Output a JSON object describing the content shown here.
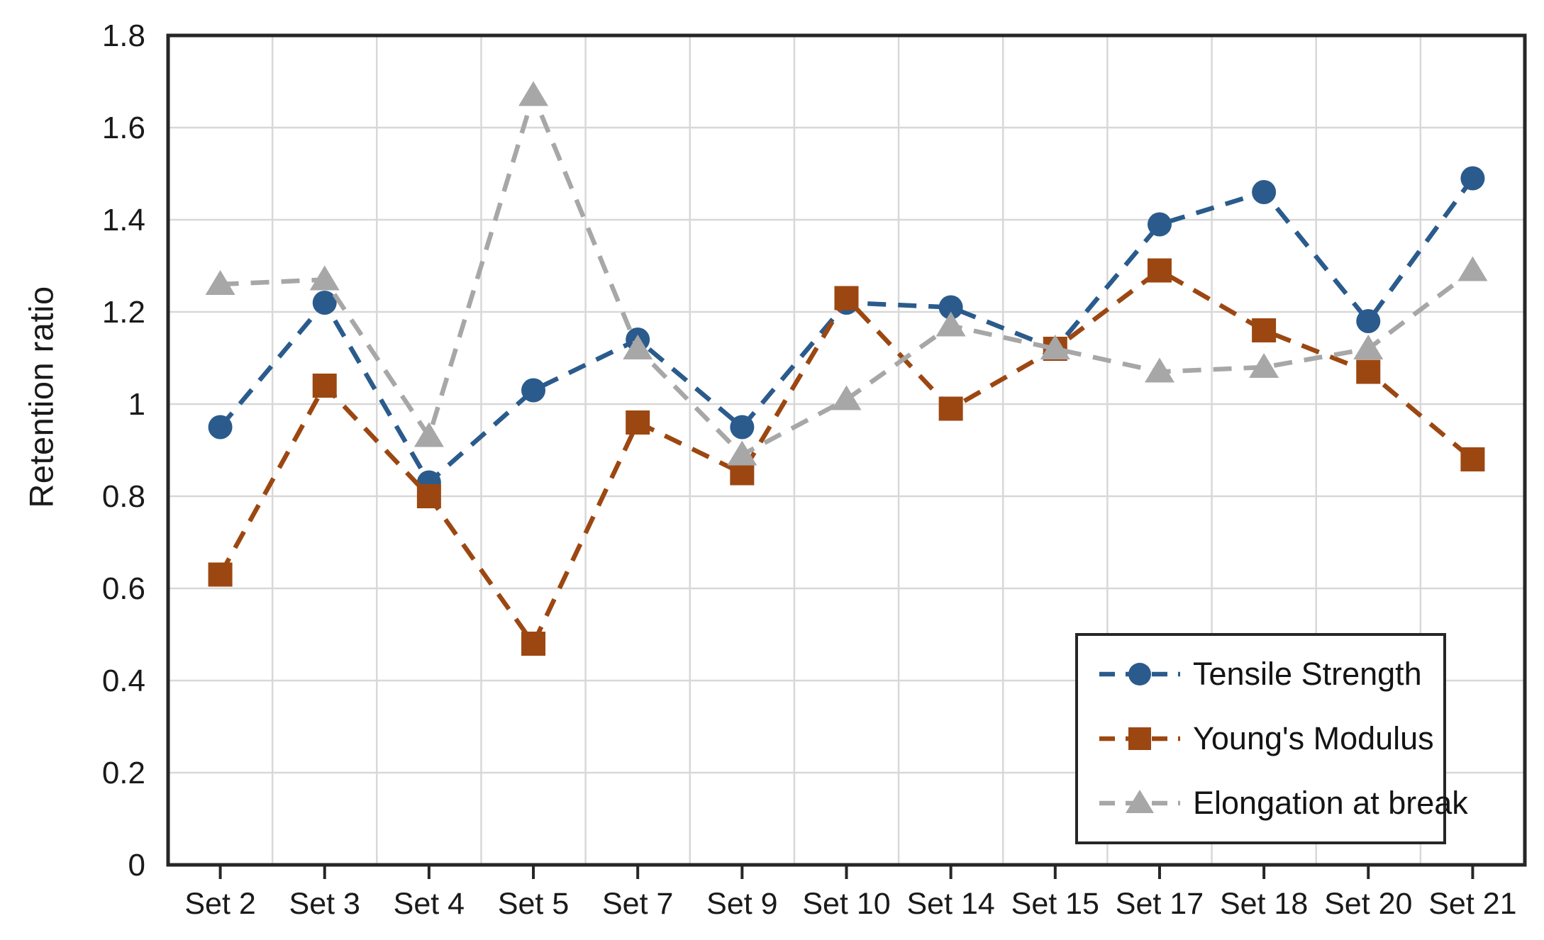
{
  "chart_data": {
    "type": "line",
    "title": "",
    "xlabel": "",
    "ylabel": "Retention ratio",
    "ylim": [
      0,
      1.8
    ],
    "ytick_step": 0.2,
    "ytick_labels": [
      "0",
      "0.2",
      "0.4",
      "0.6",
      "0.8",
      "1",
      "1.2",
      "1.4",
      "1.6",
      "1.8"
    ],
    "grid": true,
    "line_style": "dashed",
    "legend_position": "inside-bottom-right",
    "categories": [
      "Set 2",
      "Set 3",
      "Set 4",
      "Set 5",
      "Set 7",
      "Set 9",
      "Set 10",
      "Set 14",
      "Set 15",
      "Set 17",
      "Set 18",
      "Set 20",
      "Set 21"
    ],
    "series": [
      {
        "name": "Tensile Strength",
        "marker": "circle",
        "color": "#2A5B8C",
        "values": [
          0.95,
          1.22,
          0.83,
          1.03,
          1.14,
          0.95,
          1.22,
          1.21,
          1.12,
          1.39,
          1.46,
          1.18,
          1.49
        ]
      },
      {
        "name": "Young's Modulus",
        "marker": "square",
        "color": "#9C4711",
        "values": [
          0.63,
          1.04,
          0.8,
          0.48,
          0.96,
          0.85,
          1.23,
          0.99,
          1.12,
          1.29,
          1.16,
          1.07,
          0.88
        ]
      },
      {
        "name": "Elongation at break",
        "marker": "triangle",
        "color": "#A7A7A7",
        "values": [
          1.26,
          1.27,
          0.93,
          1.67,
          1.12,
          0.89,
          1.01,
          1.17,
          1.12,
          1.07,
          1.08,
          1.12,
          1.29
        ]
      }
    ]
  },
  "colors": {
    "grid": "#D8D8D8",
    "frame": "#262626",
    "tick": "#262626",
    "text": "#1A1A1A",
    "background": "#FFFFFF"
  }
}
